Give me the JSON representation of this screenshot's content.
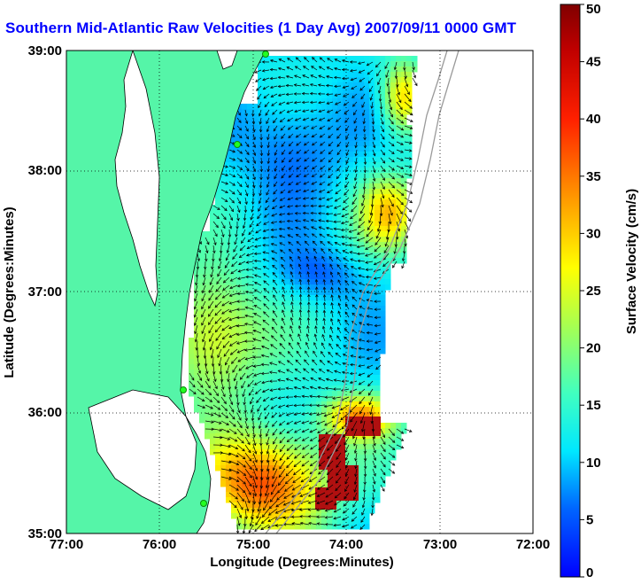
{
  "title": "Southern Mid-Atlantic Raw Velocities (1 Day Avg) 2007/09/11 0000 GMT",
  "chart_data": {
    "type": "heatmap",
    "subtype": "current-vector-map",
    "xlabel": "Longitude (Degrees:Minutes)",
    "ylabel": "Latitude (Degrees:Minutes)",
    "xlim": [
      -77,
      -72
    ],
    "ylim": [
      35,
      39
    ],
    "x_ticks": [
      "77:00",
      "76:00",
      "75:00",
      "74:00",
      "73:00",
      "72:00"
    ],
    "y_ticks": [
      "35:00",
      "36:00",
      "37:00",
      "38:00",
      "39:00"
    ],
    "grid": true,
    "colorbar": {
      "label": "Surface Velocity (cm/s)",
      "min": 0,
      "max": 50,
      "ticks": [
        "0",
        "5",
        "10",
        "15",
        "20",
        "25",
        "30",
        "35",
        "40",
        "45",
        "50"
      ]
    },
    "colors": {
      "land": "#55f5a8",
      "title": "#0000ff"
    }
  }
}
